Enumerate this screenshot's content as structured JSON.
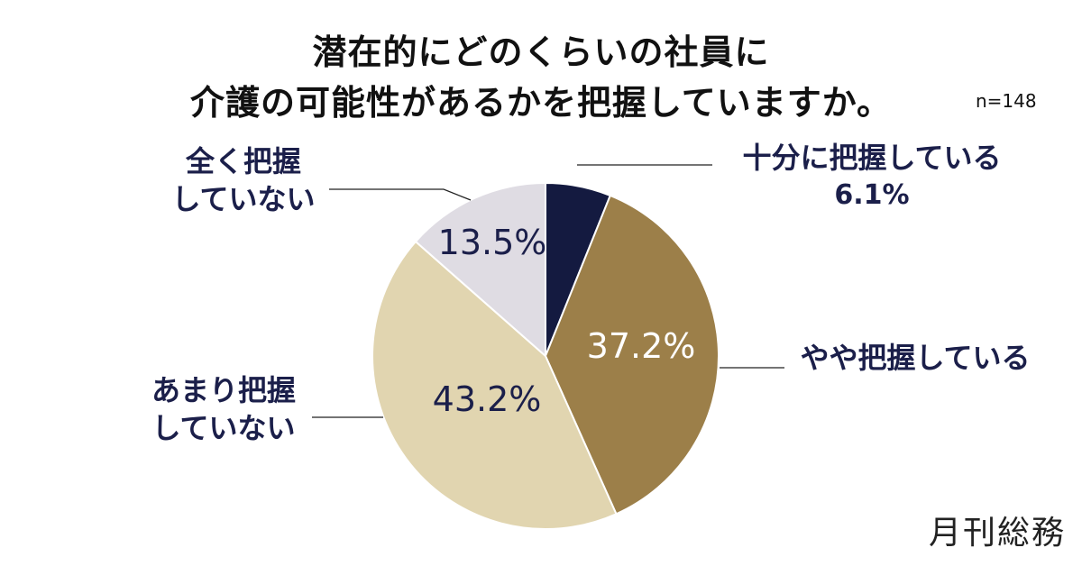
{
  "title_lines": [
    "潜在的にどのくらいの社員に",
    "介護の可能性があるかを把握していますか。"
  ],
  "sample_size": "n=148",
  "brand": "月刊総務",
  "chart_data": {
    "type": "pie",
    "start_angle_deg": 0,
    "direction": "clockwise",
    "slices": [
      {
        "label_lines": [
          "十分に把握している"
        ],
        "value": 6.1,
        "value_label": "6.1%",
        "color": "#141a40",
        "value_label_position": "outside"
      },
      {
        "label_lines": [
          "やや把握している"
        ],
        "value": 37.2,
        "value_label": "37.2%",
        "color": "#9c7f49",
        "value_label_position": "inside"
      },
      {
        "label_lines": [
          "あまり把握",
          "していない"
        ],
        "value": 43.2,
        "value_label": "43.2%",
        "color": "#e1d5b0",
        "value_label_position": "inside"
      },
      {
        "label_lines": [
          "全く把握",
          "していない"
        ],
        "value": 13.5,
        "value_label": "13.5%",
        "color": "#dfdce3",
        "value_label_position": "inside"
      }
    ]
  }
}
